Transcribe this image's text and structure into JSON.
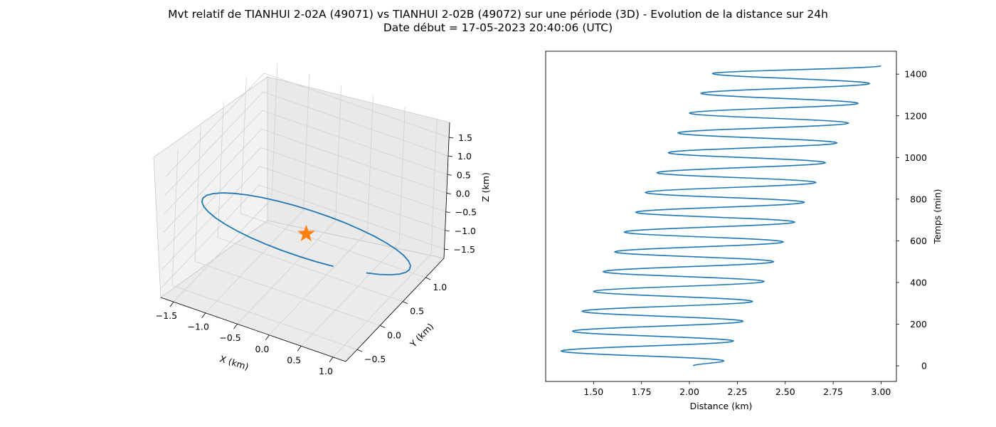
{
  "title_line1": "Mvt relatif de TIANHUI 2-02A (49071) vs TIANHUI 2-02B (49072) sur une période (3D) - Evolution de la distance sur 24h",
  "title_line2": "Date début = 17-05-2023 20:40:06 (UTC)",
  "colors": {
    "line": "#1f77b4",
    "marker": "#ff7f0e",
    "pane": "#f2f2f2",
    "grid": "#d0d0d0"
  },
  "chart_data": [
    {
      "type": "line3d",
      "xlabel": "X (km)",
      "ylabel": "Y (km)",
      "zlabel": "Z (km)",
      "xlim": [
        -1.7,
        1.2
      ],
      "ylim": [
        -0.75,
        1.4
      ],
      "zlim": [
        -1.75,
        1.9
      ],
      "xticks": [
        "−1.5",
        "−1.0",
        "−0.5",
        "0.0",
        "0.5",
        "1.0"
      ],
      "xtick_values": [
        -1.5,
        -1.0,
        -0.5,
        0.0,
        0.5,
        1.0
      ],
      "yticks": [
        "−0.5",
        "0.0",
        "0.5",
        "1.0"
      ],
      "ytick_values": [
        -0.5,
        0.0,
        0.5,
        1.0
      ],
      "zticks": [
        "−1.5",
        "−1.0",
        "−0.5",
        "0.0",
        "0.5",
        "1.0",
        "1.5"
      ],
      "ztick_values": [
        -1.5,
        -1.0,
        -0.5,
        0.0,
        0.5,
        1.0,
        1.5
      ],
      "grid": true,
      "marker": {
        "shape": "star",
        "x": 0,
        "y": 0,
        "z": 0
      },
      "trajectory": {
        "x_amplitude": 1.5,
        "y_amplitude": 0.95,
        "z_amplitude": 1.8,
        "samples": 36
      }
    },
    {
      "type": "line",
      "xlabel": "Distance (km)",
      "ylabel": "Temps (min)",
      "xlim": [
        1.25,
        3.08
      ],
      "ylim": [
        -75,
        1510
      ],
      "xticks": [
        "1.50",
        "1.75",
        "2.00",
        "2.25",
        "2.50",
        "2.75",
        "3.00"
      ],
      "xtick_values": [
        1.5,
        1.75,
        2.0,
        2.25,
        2.5,
        2.75,
        3.0
      ],
      "yticks": [
        "0",
        "200",
        "400",
        "600",
        "800",
        "1000",
        "1200",
        "1400"
      ],
      "ytick_values": [
        0,
        200,
        400,
        600,
        800,
        1000,
        1200,
        1400
      ],
      "y_axis_side": "right",
      "series": [
        {
          "period_min": 95,
          "t_end_min": 1440,
          "x_start": 2.02,
          "x_end": 3.0,
          "peaks": [
            [
              2.18,
              24
            ],
            [
              2.23,
              119
            ],
            [
              2.28,
              214
            ],
            [
              2.33,
              309
            ],
            [
              2.39,
              405
            ],
            [
              2.44,
              500
            ],
            [
              2.49,
              595
            ],
            [
              2.55,
              690
            ],
            [
              2.6,
              785
            ],
            [
              2.66,
              880
            ],
            [
              2.71,
              975
            ],
            [
              2.77,
              1070
            ],
            [
              2.83,
              1165
            ],
            [
              2.88,
              1260
            ],
            [
              2.94,
              1355
            ]
          ],
          "troughs": [
            [
              1.33,
              71
            ],
            [
              1.39,
              166
            ],
            [
              1.44,
              262
            ],
            [
              1.5,
              357
            ],
            [
              1.55,
              452
            ],
            [
              1.61,
              547
            ],
            [
              1.66,
              642
            ],
            [
              1.72,
              737
            ],
            [
              1.77,
              832
            ],
            [
              1.83,
              927
            ],
            [
              1.89,
              1023
            ],
            [
              1.94,
              1118
            ],
            [
              2.0,
              1213
            ],
            [
              2.06,
              1308
            ],
            [
              2.12,
              1403
            ]
          ]
        }
      ]
    }
  ]
}
